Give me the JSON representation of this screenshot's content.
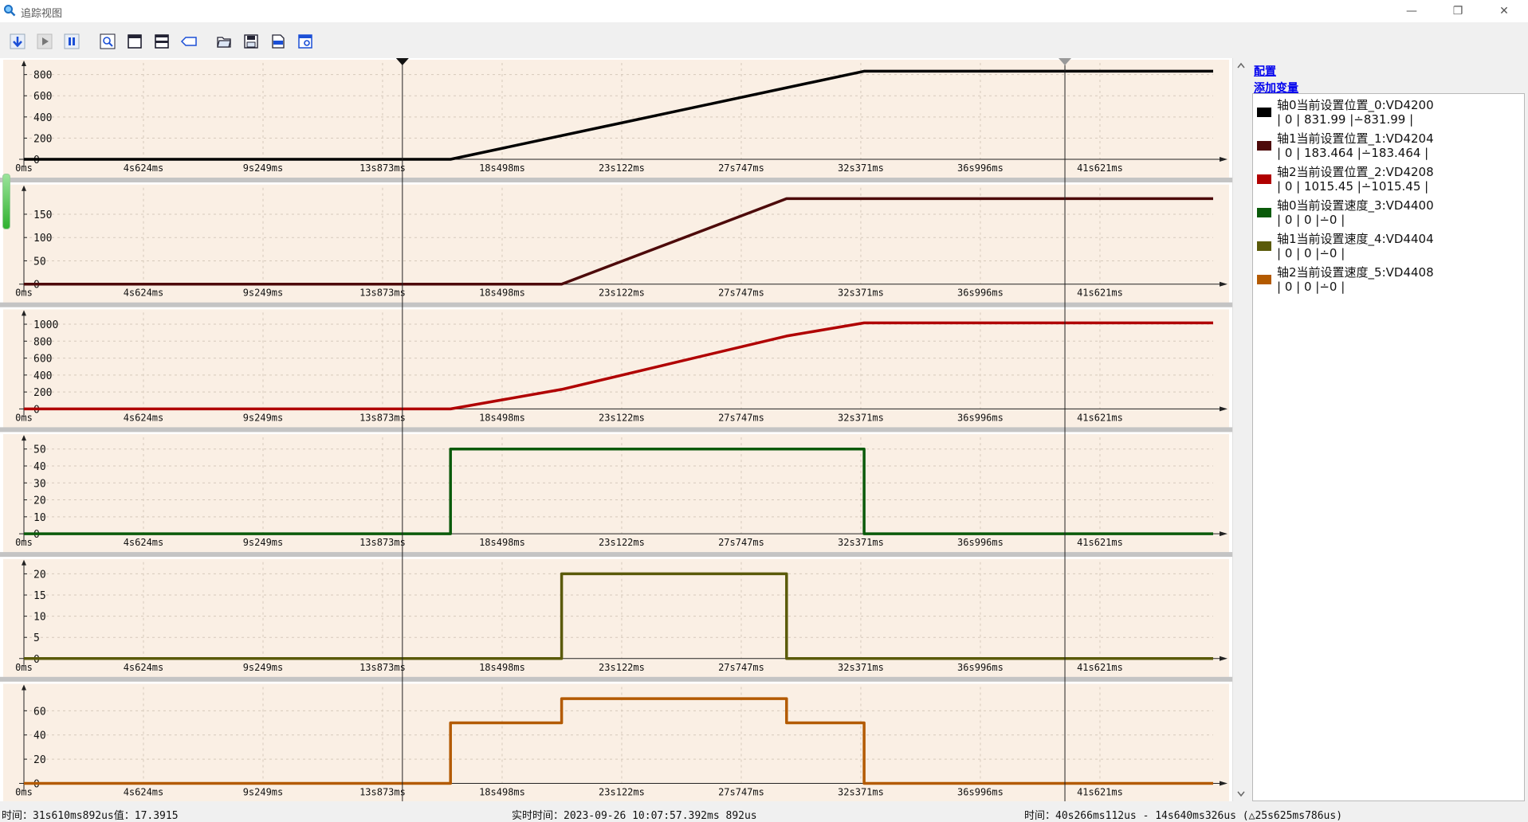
{
  "window": {
    "title": "追踪视图"
  },
  "toolbar": {
    "buttons": [
      {
        "name": "download-button",
        "icon": "arrow-down-icon"
      },
      {
        "name": "play-button",
        "icon": "play-icon"
      },
      {
        "name": "pause-button",
        "icon": "pause-icon"
      },
      {
        "name": "zoom-button",
        "icon": "zoom-icon"
      },
      {
        "name": "single-view-button",
        "icon": "window-icon"
      },
      {
        "name": "split-view-button",
        "icon": "split-window-icon"
      },
      {
        "name": "tag-button",
        "icon": "tag-icon"
      },
      {
        "name": "open-button",
        "icon": "folder-open-icon"
      },
      {
        "name": "save-button",
        "icon": "save-icon"
      },
      {
        "name": "export-csv-button",
        "icon": "csv-icon"
      },
      {
        "name": "settings-button",
        "icon": "settings-window-icon"
      }
    ]
  },
  "panel": {
    "config_link": "配置",
    "add_var_link": "添加变量",
    "legend": [
      {
        "name": "轴0当前设置位置_0:VD4200",
        "value": "| 0 | 831.99 |∸831.99 |",
        "color": "#000000"
      },
      {
        "name": "轴1当前设置位置_1:VD4204",
        "value": "| 0 | 183.464 |∸183.464 |",
        "color": "#4d0a0a"
      },
      {
        "name": "轴2当前设置位置_2:VD4208",
        "value": "| 0 | 1015.45 |∸1015.45 |",
        "color": "#b00000"
      },
      {
        "name": "轴0当前设置速度_3:VD4400",
        "value": "| 0 | 0 |∸0 |",
        "color": "#0a5a0a"
      },
      {
        "name": "轴1当前设置速度_4:VD4404",
        "value": "| 0 | 0 |∸0 |",
        "color": "#5a5a0a"
      },
      {
        "name": "轴2当前设置速度_5:VD4408",
        "value": "| 0 | 0 |∸0 |",
        "color": "#b35a00"
      }
    ]
  },
  "status": {
    "left": "时间：31s610ms892us值：17.3915",
    "middle": "实时时间：2023-09-26 10:07:57.392ms 892us",
    "right": "时间：40s266ms112us - 14s640ms326us (△25s625ms786us)"
  },
  "chart_data": {
    "type": "line",
    "x_tick_labels": [
      "0ms",
      "4s624ms",
      "9s249ms",
      "13s873ms",
      "18s498ms",
      "23s122ms",
      "27s747ms",
      "32s371ms",
      "36s996ms",
      "41s621ms"
    ],
    "x_ticks_ms": [
      0,
      4624,
      9249,
      13873,
      18498,
      23122,
      27747,
      32371,
      36996,
      41621
    ],
    "xlim_ms": [
      0,
      46000
    ],
    "cursors_ms": [
      14640,
      40266
    ],
    "grid": true,
    "background": "#faefe4",
    "panels": [
      {
        "series": "轴0当前设置位置_0:VD4200",
        "color": "#000000",
        "ylim": [
          0,
          880
        ],
        "yticks": [
          "0",
          "200",
          "400",
          "600",
          "800"
        ],
        "ytick_values": [
          0,
          200,
          400,
          600,
          800
        ],
        "x": [
          0,
          16500,
          32500,
          46000
        ],
        "y": [
          0,
          0,
          831.99,
          831.99
        ]
      },
      {
        "series": "轴1当前设置位置_1:VD4204",
        "color": "#4d0a0a",
        "ylim": [
          0,
          200
        ],
        "yticks": [
          "0",
          "50",
          "100",
          "150"
        ],
        "ytick_values": [
          0,
          50,
          100,
          150
        ],
        "x": [
          0,
          20800,
          29500,
          46000
        ],
        "y": [
          0,
          0,
          183.464,
          183.464
        ]
      },
      {
        "series": "轴2当前设置位置_2:VD4208",
        "color": "#b00000",
        "ylim": [
          0,
          1100
        ],
        "yticks": [
          "0",
          "200",
          "400",
          "600",
          "800",
          "1000"
        ],
        "ytick_values": [
          0,
          200,
          400,
          600,
          800,
          1000
        ],
        "x": [
          0,
          16500,
          20800,
          29500,
          32500,
          46000
        ],
        "y": [
          0,
          0,
          230,
          860,
          1015.45,
          1015.45
        ]
      },
      {
        "series": "轴0当前设置速度_3:VD4400",
        "color": "#0a5a0a",
        "ylim": [
          0,
          55
        ],
        "yticks": [
          "0",
          "10",
          "20",
          "30",
          "40",
          "50"
        ],
        "ytick_values": [
          0,
          10,
          20,
          30,
          40,
          50
        ],
        "x": [
          0,
          16500,
          16500,
          32500,
          32500,
          46000
        ],
        "y": [
          0,
          0,
          50,
          50,
          0,
          0
        ]
      },
      {
        "series": "轴1当前设置速度_4:VD4404",
        "color": "#5a5a0a",
        "ylim": [
          0,
          22
        ],
        "yticks": [
          "0",
          "5",
          "10",
          "15",
          "20"
        ],
        "ytick_values": [
          0,
          5,
          10,
          15,
          20
        ],
        "x": [
          0,
          20800,
          20800,
          29500,
          29500,
          46000
        ],
        "y": [
          0,
          0,
          20,
          20,
          0,
          0
        ]
      },
      {
        "series": "轴2当前设置速度_5:VD4408",
        "color": "#b35a00",
        "ylim": [
          0,
          77
        ],
        "yticks": [
          "0",
          "20",
          "40",
          "60"
        ],
        "ytick_values": [
          0,
          20,
          40,
          60
        ],
        "x": [
          0,
          16500,
          16500,
          20800,
          20800,
          29500,
          29500,
          32500,
          32500,
          46000
        ],
        "y": [
          0,
          0,
          50,
          50,
          70,
          70,
          50,
          50,
          0,
          0
        ]
      }
    ]
  }
}
